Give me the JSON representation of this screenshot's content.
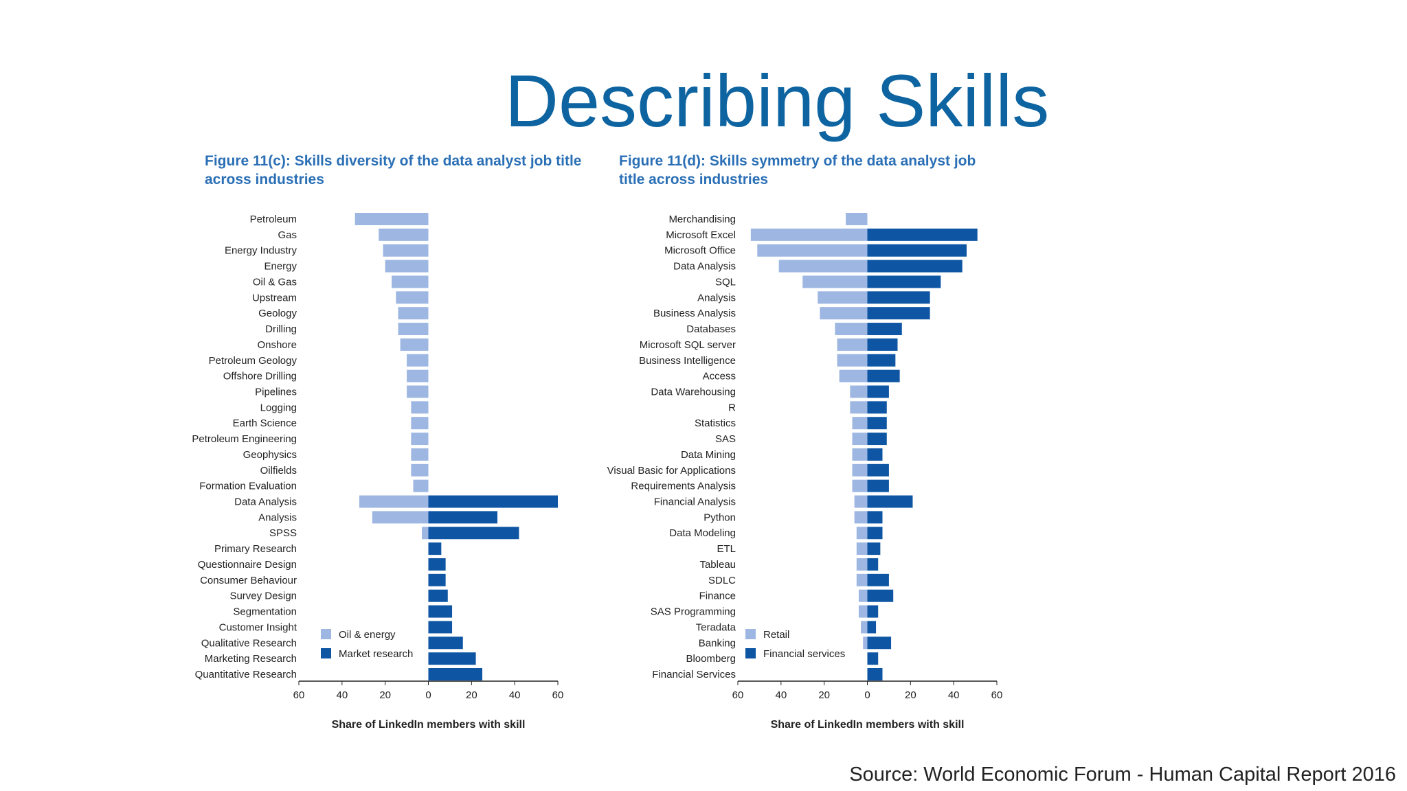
{
  "slide": {
    "title": "Describing Skills",
    "source": "Source: World Economic Forum - Human Capital Report 2016"
  },
  "colors": {
    "light": "#9db7e2",
    "dark": "#0e56a4",
    "title": "#0d64a0",
    "figure_title": "#2a6fb5"
  },
  "chart_data": [
    {
      "type": "bar",
      "orientation": "horizontal-diverging",
      "title": "Figure 11(c): Skills diversity of the data analyst job title across industries",
      "title_lines": [
        "Figure 11(c): Skills diversity of the data analyst job title",
        "across industries"
      ],
      "xlabel": "Share of LinkedIn members with skill",
      "xlim": [
        -60,
        60
      ],
      "xticks": [
        -60,
        -40,
        -20,
        0,
        20,
        40,
        60
      ],
      "xtick_labels": [
        "60",
        "40",
        "20",
        "0",
        "20",
        "40",
        "60"
      ],
      "legend_position": "bottom-left",
      "categories": [
        "Petroleum",
        "Gas",
        "Energy Industry",
        "Energy",
        "Oil & Gas",
        "Upstream",
        "Geology",
        "Drilling",
        "Onshore",
        "Petroleum Geology",
        "Offshore Drilling",
        "Pipelines",
        "Logging",
        "Earth Science",
        "Petroleum Engineering",
        "Geophysics",
        "Oilfields",
        "Formation Evaluation",
        "Data Analysis",
        "Analysis",
        "SPSS",
        "Primary Research",
        "Questionnaire Design",
        "Consumer Behaviour",
        "Survey Design",
        "Segmentation",
        "Customer Insight",
        "Qualitative Research",
        "Marketing Research",
        "Quantitative Research"
      ],
      "series": [
        {
          "name": "Oil & energy",
          "side": "left",
          "color": "#9db7e2",
          "values": [
            34,
            23,
            21,
            20,
            17,
            15,
            14,
            14,
            13,
            10,
            10,
            10,
            8,
            8,
            8,
            8,
            8,
            7,
            32,
            26,
            3,
            0,
            0,
            0,
            0,
            0,
            0,
            0,
            0,
            0
          ]
        },
        {
          "name": "Market research",
          "side": "right",
          "color": "#0e56a4",
          "values": [
            0,
            0,
            0,
            0,
            0,
            0,
            0,
            0,
            0,
            0,
            0,
            0,
            0,
            0,
            0,
            0,
            0,
            0,
            60,
            32,
            42,
            6,
            8,
            8,
            9,
            11,
            11,
            16,
            22,
            25
          ]
        }
      ]
    },
    {
      "type": "bar",
      "orientation": "horizontal-diverging",
      "title": "Figure 11(d): Skills symmetry of the data analyst job title across industries",
      "title_lines": [
        "Figure 11(d): Skills symmetry of the data analyst job",
        "title across industries"
      ],
      "xlabel": "Share of LinkedIn members with skill",
      "xlim": [
        -60,
        60
      ],
      "xticks": [
        -60,
        -40,
        -20,
        0,
        20,
        40,
        60
      ],
      "xtick_labels": [
        "60",
        "40",
        "20",
        "0",
        "20",
        "40",
        "60"
      ],
      "legend_position": "bottom-left",
      "categories": [
        "Merchandising",
        "Microsoft Excel",
        "Microsoft Office",
        "Data Analysis",
        "SQL",
        "Analysis",
        "Business Analysis",
        "Databases",
        "Microsoft SQL server",
        "Business Intelligence",
        "Access",
        "Data Warehousing",
        "R",
        "Statistics",
        "SAS",
        "Data Mining",
        "Visual Basic for Applications",
        "Requirements Analysis",
        "Financial Analysis",
        "Python",
        "Data Modeling",
        "ETL",
        "Tableau",
        "SDLC",
        "Finance",
        "SAS Programming",
        "Teradata",
        "Banking",
        "Bloomberg",
        "Financial Services"
      ],
      "series": [
        {
          "name": "Retail",
          "side": "left",
          "color": "#9db7e2",
          "values": [
            10,
            54,
            51,
            41,
            30,
            23,
            22,
            15,
            14,
            14,
            13,
            8,
            8,
            7,
            7,
            7,
            7,
            7,
            6,
            6,
            5,
            5,
            5,
            5,
            4,
            4,
            3,
            2,
            0,
            0
          ]
        },
        {
          "name": "Financial services",
          "side": "right",
          "color": "#0e56a4",
          "values": [
            0,
            51,
            46,
            44,
            34,
            29,
            29,
            16,
            14,
            13,
            15,
            10,
            9,
            9,
            9,
            7,
            10,
            10,
            21,
            7,
            7,
            6,
            5,
            10,
            12,
            5,
            4,
            11,
            5,
            7
          ]
        }
      ]
    }
  ]
}
